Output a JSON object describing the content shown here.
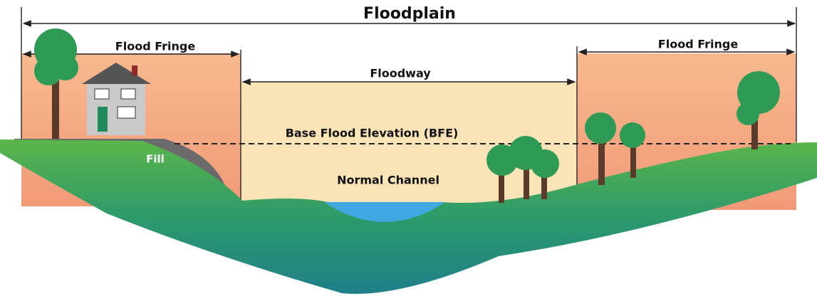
{
  "title": "Floodplain",
  "zones": [
    {
      "label": "Flood Fringe"
    },
    {
      "label": "Floodway"
    },
    {
      "label": "Flood Fringe"
    }
  ],
  "annotations": {
    "bfe": "Base Flood Elevation (BFE)",
    "channel": "Normal Channel",
    "fill": "Fill"
  }
}
